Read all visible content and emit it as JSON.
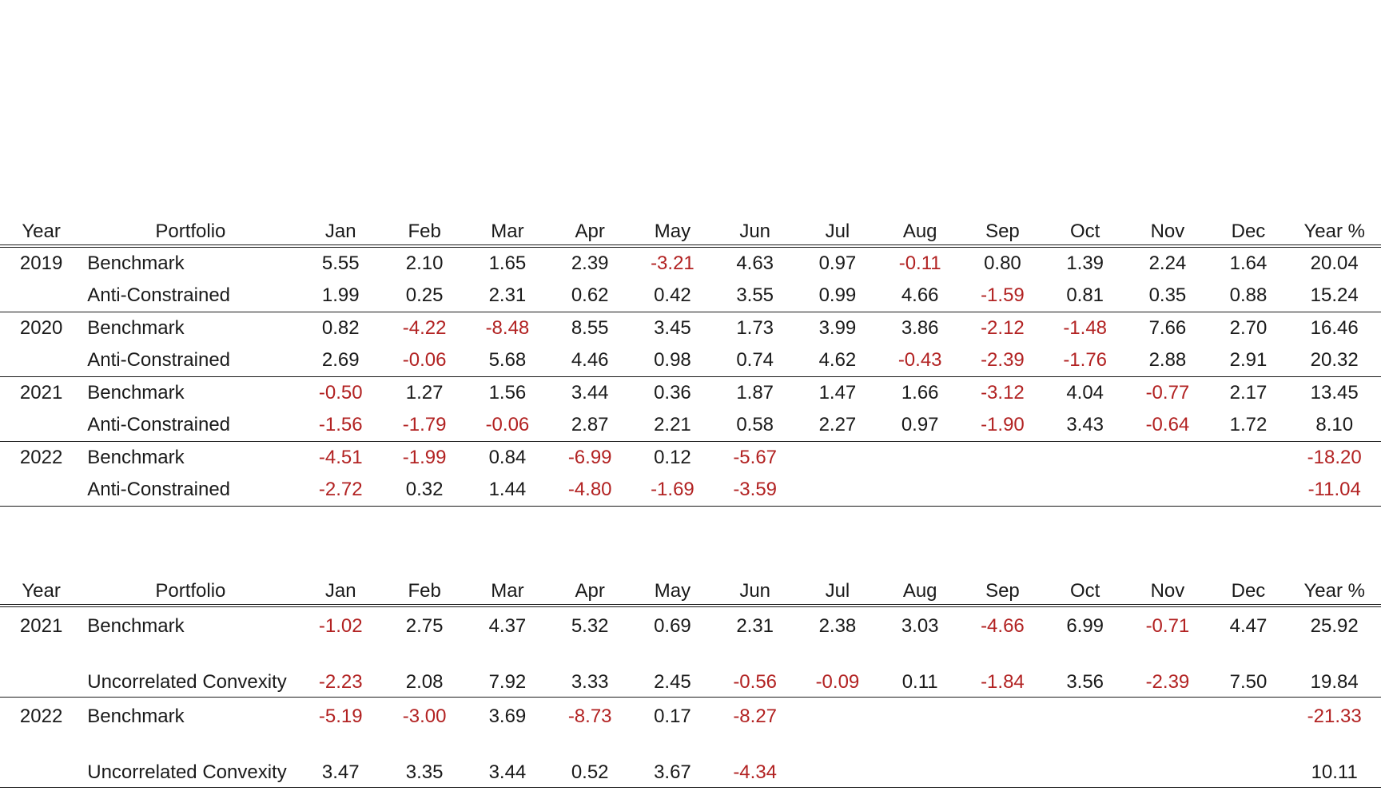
{
  "colors": {
    "text": "#1a1a1a",
    "negative": "#b22222"
  },
  "headers": [
    "Year",
    "Portfolio",
    "Jan",
    "Feb",
    "Mar",
    "Apr",
    "May",
    "Jun",
    "Jul",
    "Aug",
    "Sep",
    "Oct",
    "Nov",
    "Dec",
    "Year %"
  ],
  "table1": {
    "groups": [
      {
        "year": "2019",
        "rows": [
          {
            "portfolio": "Benchmark",
            "values": [
              "5.55",
              "2.10",
              "1.65",
              "2.39",
              "-3.21",
              "4.63",
              "0.97",
              "-0.11",
              "0.80",
              "1.39",
              "2.24",
              "1.64",
              "20.04"
            ]
          },
          {
            "portfolio": "Anti-Constrained",
            "values": [
              "1.99",
              "0.25",
              "2.31",
              "0.62",
              "0.42",
              "3.55",
              "0.99",
              "4.66",
              "-1.59",
              "0.81",
              "0.35",
              "0.88",
              "15.24"
            ]
          }
        ]
      },
      {
        "year": "2020",
        "rows": [
          {
            "portfolio": "Benchmark",
            "values": [
              "0.82",
              "-4.22",
              "-8.48",
              "8.55",
              "3.45",
              "1.73",
              "3.99",
              "3.86",
              "-2.12",
              "-1.48",
              "7.66",
              "2.70",
              "16.46"
            ]
          },
          {
            "portfolio": "Anti-Constrained",
            "values": [
              "2.69",
              "-0.06",
              "5.68",
              "4.46",
              "0.98",
              "0.74",
              "4.62",
              "-0.43",
              "-2.39",
              "-1.76",
              "2.88",
              "2.91",
              "20.32"
            ]
          }
        ]
      },
      {
        "year": "2021",
        "rows": [
          {
            "portfolio": "Benchmark",
            "values": [
              "-0.50",
              "1.27",
              "1.56",
              "3.44",
              "0.36",
              "1.87",
              "1.47",
              "1.66",
              "-3.12",
              "4.04",
              "-0.77",
              "2.17",
              "13.45"
            ]
          },
          {
            "portfolio": "Anti-Constrained",
            "values": [
              "-1.56",
              "-1.79",
              "-0.06",
              "2.87",
              "2.21",
              "0.58",
              "2.27",
              "0.97",
              "-1.90",
              "3.43",
              "-0.64",
              "1.72",
              "8.10"
            ]
          }
        ]
      },
      {
        "year": "2022",
        "rows": [
          {
            "portfolio": "Benchmark",
            "values": [
              "-4.51",
              "-1.99",
              "0.84",
              "-6.99",
              "0.12",
              "-5.67",
              "",
              "",
              "",
              "",
              "",
              "",
              "-18.20"
            ]
          },
          {
            "portfolio": "Anti-Constrained",
            "values": [
              "-2.72",
              "0.32",
              "1.44",
              "-4.80",
              "-1.69",
              "-3.59",
              "",
              "",
              "",
              "",
              "",
              "",
              "-11.04"
            ]
          }
        ]
      }
    ]
  },
  "table2": {
    "groups": [
      {
        "year": "2021",
        "rows": [
          {
            "portfolio": "Benchmark",
            "values": [
              "-1.02",
              "2.75",
              "4.37",
              "5.32",
              "0.69",
              "2.31",
              "2.38",
              "3.03",
              "-4.66",
              "6.99",
              "-0.71",
              "4.47",
              "25.92"
            ]
          },
          {
            "portfolio": "Uncorrelated Convexity",
            "values": [
              "-2.23",
              "2.08",
              "7.92",
              "3.33",
              "2.45",
              "-0.56",
              "-0.09",
              "0.11",
              "-1.84",
              "3.56",
              "-2.39",
              "7.50",
              "19.84"
            ]
          }
        ]
      },
      {
        "year": "2022",
        "rows": [
          {
            "portfolio": "Benchmark",
            "values": [
              "-5.19",
              "-3.00",
              "3.69",
              "-8.73",
              "0.17",
              "-8.27",
              "",
              "",
              "",
              "",
              "",
              "",
              "-21.33"
            ]
          },
          {
            "portfolio": "Uncorrelated Convexity",
            "values": [
              "3.47",
              "3.35",
              "3.44",
              "0.52",
              "3.67",
              "-4.34",
              "",
              "",
              "",
              "",
              "",
              "",
              "10.11"
            ]
          }
        ]
      }
    ]
  }
}
